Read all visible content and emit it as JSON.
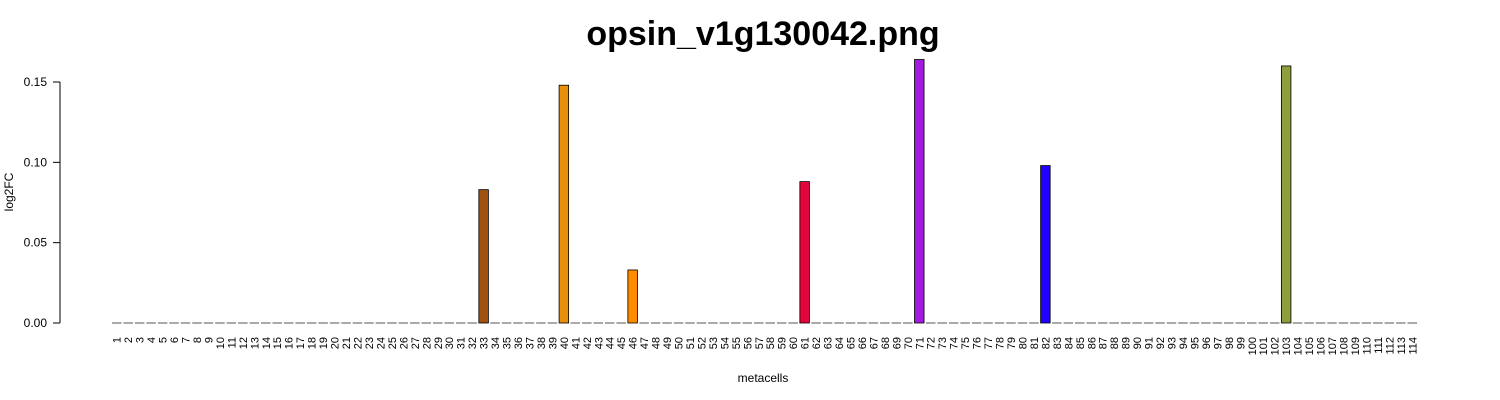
{
  "chart_data": {
    "type": "bar",
    "title": "opsin_v1g130042.png",
    "xlabel": "metacells",
    "ylabel": "log2FC",
    "ylim": [
      0,
      0.165
    ],
    "yticks": [
      "0.00",
      "0.05",
      "0.10",
      "0.15"
    ],
    "ytick_values": [
      0,
      0.05,
      0.1,
      0.15
    ],
    "grid": false,
    "categories": [
      "1",
      "2",
      "3",
      "4",
      "5",
      "6",
      "7",
      "8",
      "9",
      "10",
      "11",
      "12",
      "13",
      "14",
      "15",
      "16",
      "17",
      "18",
      "19",
      "20",
      "21",
      "22",
      "23",
      "24",
      "25",
      "26",
      "27",
      "28",
      "29",
      "30",
      "31",
      "32",
      "33",
      "34",
      "35",
      "36",
      "37",
      "38",
      "39",
      "40",
      "41",
      "42",
      "43",
      "44",
      "45",
      "46",
      "47",
      "48",
      "49",
      "50",
      "51",
      "52",
      "53",
      "54",
      "55",
      "56",
      "57",
      "58",
      "59",
      "60",
      "61",
      "62",
      "63",
      "64",
      "65",
      "66",
      "67",
      "68",
      "69",
      "70",
      "71",
      "72",
      "73",
      "74",
      "75",
      "76",
      "77",
      "78",
      "79",
      "80",
      "81",
      "82",
      "83",
      "84",
      "85",
      "86",
      "87",
      "88",
      "89",
      "90",
      "91",
      "92",
      "93",
      "94",
      "95",
      "96",
      "97",
      "98",
      "99",
      "100",
      "101",
      "102",
      "103",
      "104",
      "105",
      "106",
      "107",
      "108",
      "109",
      "110",
      "111",
      "112",
      "113",
      "114"
    ],
    "values": [
      0,
      0,
      0,
      0,
      0,
      0,
      0,
      0,
      0,
      0,
      0,
      0,
      0,
      0,
      0,
      0,
      0,
      0,
      0,
      0,
      0,
      0,
      0,
      0,
      0,
      0,
      0,
      0,
      0,
      0,
      0,
      0,
      0.083,
      0,
      0,
      0,
      0,
      0,
      0,
      0.148,
      0,
      0,
      0,
      0,
      0,
      0.033,
      0,
      0,
      0,
      0,
      0,
      0,
      0,
      0,
      0,
      0,
      0,
      0,
      0,
      0,
      0.088,
      0,
      0,
      0,
      0,
      0,
      0,
      0,
      0,
      0,
      0.164,
      0,
      0,
      0,
      0,
      0,
      0,
      0,
      0,
      0,
      0,
      0.098,
      0,
      0,
      0,
      0,
      0,
      0,
      0,
      0,
      0,
      0,
      0,
      0,
      0,
      0,
      0,
      0,
      0,
      0,
      0,
      0,
      0.16,
      0,
      0,
      0,
      0,
      0,
      0,
      0,
      0,
      0,
      0,
      0
    ],
    "bar_colors": {
      "33": "#A0520F",
      "40": "#E8900A",
      "46": "#FF8C00",
      "61": "#E3063A",
      "71": "#A41BE0",
      "82": "#2200FF",
      "103": "#8F9E3A"
    },
    "default_color": "#888888"
  }
}
